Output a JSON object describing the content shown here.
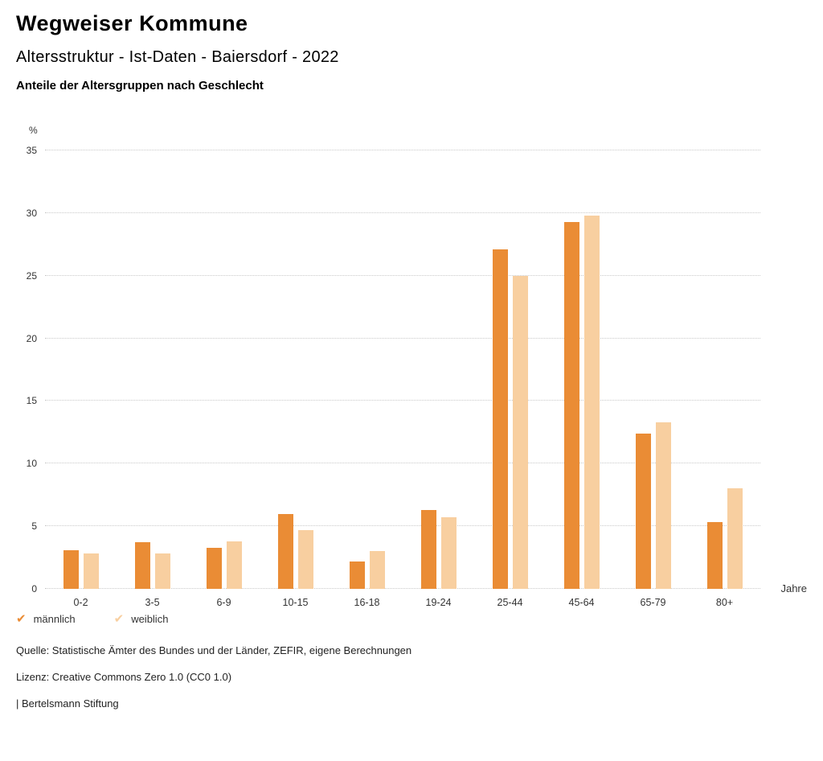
{
  "header": {
    "title": "Wegweiser Kommune",
    "subtitle": "Altersstruktur - Ist-Daten - Baiersdorf - 2022",
    "chart_heading": "Anteile der Altersgruppen nach Geschlecht"
  },
  "chart_data": {
    "type": "bar",
    "categories": [
      "0-2",
      "3-5",
      "6-9",
      "10-15",
      "16-18",
      "19-24",
      "25-44",
      "45-64",
      "65-79",
      "80+"
    ],
    "series": [
      {
        "name": "männlich",
        "color": "#EA8C35",
        "values": [
          3.1,
          3.7,
          3.3,
          6.0,
          2.2,
          6.3,
          27.1,
          29.3,
          12.4,
          5.3
        ]
      },
      {
        "name": "weiblich",
        "color": "#F8CFA0",
        "values": [
          2.8,
          2.8,
          3.8,
          4.7,
          3.0,
          5.7,
          25.0,
          29.8,
          13.3,
          8.0
        ]
      }
    ],
    "y_unit": "%",
    "x_unit": "Jahre",
    "ylim": [
      0,
      35
    ],
    "ytick_step": 5,
    "grid": "horizontal-dotted",
    "legend_position": "bottom-left"
  },
  "legend": {
    "items": [
      {
        "label": "männlich",
        "color": "#EA8C35"
      },
      {
        "label": "weiblich",
        "color": "#F8CFA0"
      }
    ]
  },
  "footer": {
    "source": "Quelle: Statistische Ämter des Bundes und der Länder, ZEFIR, eigene Berechnungen",
    "license": "Lizenz: Creative Commons Zero 1.0 (CC0 1.0)",
    "attribution": "| Bertelsmann Stiftung"
  }
}
